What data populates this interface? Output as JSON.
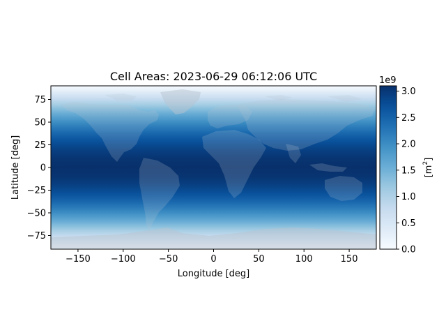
{
  "chart_data": {
    "type": "heatmap",
    "title": "Cell Areas: 2023-06-29 06:12:06 UTC",
    "xlabel": "Longitude [deg]",
    "ylabel": "Latitude [deg]",
    "xlim": [
      -180,
      180
    ],
    "ylim": [
      -90,
      90
    ],
    "xticks": [
      -150,
      -100,
      -50,
      0,
      50,
      100,
      150
    ],
    "yticks": [
      -75,
      -50,
      -25,
      0,
      25,
      50,
      75
    ],
    "xtick_labels": [
      "−150",
      "−100",
      "−50",
      "0",
      "50",
      "100",
      "150"
    ],
    "ytick_labels": [
      "−75",
      "−50",
      "−25",
      "0",
      "25",
      "50",
      "75"
    ],
    "grid": false,
    "description_of_field": "cell area ∝ cos(latitude), max at equator",
    "value_max_m2": 3090000000.0,
    "colormap": "Blues",
    "colormap_stops": [
      "#f7fbff",
      "#deebf7",
      "#c6dbef",
      "#9ecae1",
      "#6baed6",
      "#4292c6",
      "#2171b5",
      "#08519c",
      "#08306b"
    ],
    "colorbar": {
      "label": "[m²]",
      "label_base": "[m",
      "label_sup": "2",
      "label_end": "]",
      "multiplier": "1e9",
      "range": [
        0,
        3100000000.0
      ],
      "ticks": [
        0.0,
        0.5,
        1.0,
        1.5,
        2.0,
        2.5,
        3.0
      ],
      "tick_labels": [
        "0.0",
        "0.5",
        "1.0",
        "1.5",
        "2.0",
        "2.5",
        "3.0"
      ]
    },
    "overlay": "grey-shaded land relief, semi-transparent"
  }
}
